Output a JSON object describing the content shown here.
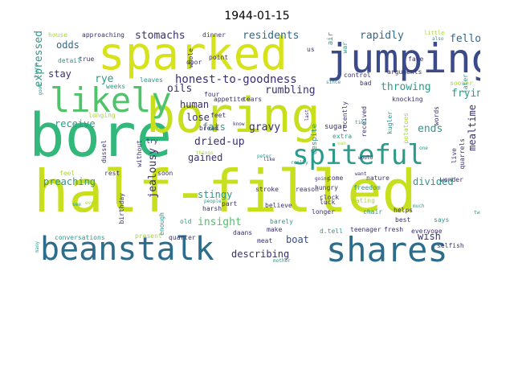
{
  "title": "1944-01-15",
  "words": [
    {
      "text": "half-filled",
      "color": "#c8df1e"
    },
    {
      "text": "bore",
      "color": "#31b87a"
    },
    {
      "text": "boring",
      "color": "#c8df1e"
    },
    {
      "text": "sparked",
      "color": "#d6e21a"
    },
    {
      "text": "jumping",
      "color": "#3b4b8a"
    },
    {
      "text": "beanstalk",
      "color": "#2e6c8c"
    },
    {
      "text": "shares",
      "color": "#2e6c8c"
    },
    {
      "text": "likely",
      "color": "#4ec36a"
    },
    {
      "text": "spiteful",
      "color": "#2a9a8a"
    },
    {
      "text": "honest-to-goodness",
      "color": "#3b2f73"
    },
    {
      "text": "stomachs",
      "color": "#3b2f73"
    },
    {
      "text": "residents",
      "color": "#2f6a8d"
    },
    {
      "text": "rapidly",
      "color": "#2f6a8d"
    },
    {
      "text": "fellow",
      "color": "#2f6a8d"
    },
    {
      "text": "odds",
      "color": "#2f6a8d"
    },
    {
      "text": "stay",
      "color": "#3b2f73"
    },
    {
      "text": "rye",
      "color": "#2a9a8a"
    },
    {
      "text": "expressed",
      "color": "#2a9a8a"
    },
    {
      "text": "oils",
      "color": "#3b2f73"
    },
    {
      "text": "rumbling",
      "color": "#3b2f73"
    },
    {
      "text": "throwing",
      "color": "#2a9a8a"
    },
    {
      "text": "frying",
      "color": "#2a9a8a"
    },
    {
      "text": "human",
      "color": "#3b2f73"
    },
    {
      "text": "lose",
      "color": "#3b2f73"
    },
    {
      "text": "receive",
      "color": "#2a9a8a"
    },
    {
      "text": "fats",
      "color": "#2a9a8a"
    },
    {
      "text": "gravy",
      "color": "#3b2f73"
    },
    {
      "text": "mealtime",
      "color": "#3b2f73"
    },
    {
      "text": "dried-up",
      "color": "#3b2f73"
    },
    {
      "text": "ends",
      "color": "#2a9a8a"
    },
    {
      "text": "jealousy",
      "color": "#3b2f73"
    },
    {
      "text": "gained",
      "color": "#3b2f73"
    },
    {
      "text": "preaching",
      "color": "#2a9a8a"
    },
    {
      "text": "divided",
      "color": "#2a9a8a"
    },
    {
      "text": "insight",
      "color": "#4ec36a"
    },
    {
      "text": "stingy",
      "color": "#2a9a8a"
    },
    {
      "text": "boat",
      "color": "#3b4b8a"
    },
    {
      "text": "wish",
      "color": "#3b2f73"
    },
    {
      "text": "describing",
      "color": "#3b2f73"
    },
    {
      "text": "house",
      "color": "#a8d83a"
    },
    {
      "text": "approaching",
      "color": "#3b2f73"
    },
    {
      "text": "dinner",
      "color": "#3b2f73"
    },
    {
      "text": "point",
      "color": "#3b2f73"
    },
    {
      "text": "four",
      "color": "#3b2f73"
    },
    {
      "text": "leaves",
      "color": "#2a9a8a"
    },
    {
      "text": "appetite",
      "color": "#3b2f73"
    },
    {
      "text": "feet",
      "color": "#3b2f73"
    },
    {
      "text": "bread",
      "color": "#3b2f73"
    },
    {
      "text": "try",
      "color": "#3b2f73"
    },
    {
      "text": "longing",
      "color": "#a8d83a"
    },
    {
      "text": "true",
      "color": "#3b2f73"
    },
    {
      "text": "detail",
      "color": "#2a9a8a"
    },
    {
      "text": "turn",
      "color": "#2a9a8a"
    },
    {
      "text": "weeks",
      "color": "#2a9a8a"
    },
    {
      "text": "control",
      "color": "#3b2f73"
    },
    {
      "text": "arguments",
      "color": "#3b2f73"
    },
    {
      "text": "bad",
      "color": "#3b2f73"
    },
    {
      "text": "knocking",
      "color": "#3b2f73"
    },
    {
      "text": "sooner",
      "color": "#a8d83a"
    },
    {
      "text": "sugar",
      "color": "#3b2f73"
    },
    {
      "text": "extra",
      "color": "#2a9a8a"
    },
    {
      "text": "nature",
      "color": "#3b2f73"
    },
    {
      "text": "come",
      "color": "#3b2f73"
    },
    {
      "text": "wonder",
      "color": "#3b2f73"
    },
    {
      "text": "reason",
      "color": "#3b2f73"
    },
    {
      "text": "hungry",
      "color": "#3b2f73"
    },
    {
      "text": "freedom",
      "color": "#2a9a8a"
    },
    {
      "text": "clock",
      "color": "#3b2f73"
    },
    {
      "text": "eating",
      "color": "#a8d83a"
    },
    {
      "text": "helps",
      "color": "#3b2f73"
    },
    {
      "text": "believe",
      "color": "#3b2f73"
    },
    {
      "text": "longer",
      "color": "#3b2f73"
    },
    {
      "text": "luck",
      "color": "#3b2f73"
    },
    {
      "text": "chair",
      "color": "#2a9a8a"
    },
    {
      "text": "best",
      "color": "#3b2f73"
    },
    {
      "text": "says",
      "color": "#2a9a8a"
    },
    {
      "text": "feel",
      "color": "#a8d83a"
    },
    {
      "text": "rest",
      "color": "#3b2f73"
    },
    {
      "text": "soon",
      "color": "#3b2f73"
    },
    {
      "text": "harsh",
      "color": "#3b2f73"
    },
    {
      "text": "part",
      "color": "#3b2f73"
    },
    {
      "text": "barely",
      "color": "#2a9a8a"
    },
    {
      "text": "old",
      "color": "#2a9a8a"
    },
    {
      "text": "make",
      "color": "#3b2f73"
    },
    {
      "text": "daans",
      "color": "#3b2f73"
    },
    {
      "text": "d.tell",
      "color": "#2a9a8a"
    },
    {
      "text": "teenager",
      "color": "#3b2f73"
    },
    {
      "text": "fresh",
      "color": "#3b2f73"
    },
    {
      "text": "everyone",
      "color": "#3b2f73"
    },
    {
      "text": "conversations",
      "color": "#2a9a8a"
    },
    {
      "text": "present",
      "color": "#a8d83a"
    },
    {
      "text": "quarter",
      "color": "#3b2f73"
    },
    {
      "text": "meat",
      "color": "#3b2f73"
    },
    {
      "text": "door",
      "color": "#3b2f73"
    },
    {
      "text": "face",
      "color": "#3b2f73"
    },
    {
      "text": "selfish",
      "color": "#3b2f73"
    },
    {
      "text": "stroke",
      "color": "#3b2f73"
    },
    {
      "text": "birthday",
      "color": "#3b2f73"
    },
    {
      "text": "without",
      "color": "#3b2f73"
    },
    {
      "text": "dussel",
      "color": "#3b2f73"
    },
    {
      "text": "enough",
      "color": "#2a9a8a"
    },
    {
      "text": "despite",
      "color": "#2a9a8a"
    },
    {
      "text": "received",
      "color": "#3b2f73"
    },
    {
      "text": "recently",
      "color": "#3b2f73"
    },
    {
      "text": "kugler",
      "color": "#2a9a8a"
    },
    {
      "text": "potatoes",
      "color": "#a8d83a"
    },
    {
      "text": "words",
      "color": "#3b2f73"
    },
    {
      "text": "quarrels",
      "color": "#3b2f73"
    },
    {
      "text": "live",
      "color": "#3b2f73"
    },
    {
      "text": "later",
      "color": "#2a9a8a"
    },
    {
      "text": "whole",
      "color": "#3b2f73"
    },
    {
      "text": "tears",
      "color": "#3b2f73"
    },
    {
      "text": "air",
      "color": "#2a9a8a"
    },
    {
      "text": "war",
      "color": "#2a9a8a"
    },
    {
      "text": "us",
      "color": "#3b2f73"
    },
    {
      "text": "little",
      "color": "#a8d83a"
    },
    {
      "text": "also",
      "color": "#2a9a8a"
    },
    {
      "text": "good",
      "color": "#2a9a8a"
    },
    {
      "text": "know",
      "color": "#3b2f73"
    },
    {
      "text": "last",
      "color": "#3b2f73"
    },
    {
      "text": "like",
      "color": "#3b2f73"
    },
    {
      "text": "even",
      "color": "#a8d83a"
    },
    {
      "text": "people",
      "color": "#2a9a8a"
    },
    {
      "text": "many",
      "color": "#2a9a8a"
    },
    {
      "text": "mother",
      "color": "#2a9a8a"
    },
    {
      "text": "really",
      "color": "#2a9a8a"
    },
    {
      "text": "things",
      "color": "#a8d83a"
    },
    {
      "text": "peter",
      "color": "#2a9a8a"
    },
    {
      "text": "time",
      "color": "#2a9a8a"
    },
    {
      "text": "since",
      "color": "#2a9a8a"
    },
    {
      "text": "van",
      "color": "#a8d83a"
    },
    {
      "text": "see",
      "color": "#2a9a8a"
    },
    {
      "text": "want",
      "color": "#3b2f73"
    },
    {
      "text": "going",
      "color": "#3b2f73"
    },
    {
      "text": "two",
      "color": "#2a9a8a"
    },
    {
      "text": "much",
      "color": "#2a9a8a"
    },
    {
      "text": "one",
      "color": "#2a9a8a"
    },
    {
      "text": "would",
      "color": "#3b2f73"
    }
  ]
}
